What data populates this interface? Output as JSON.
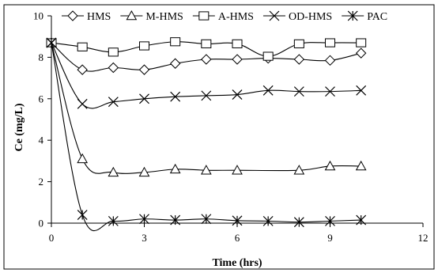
{
  "chart_data": {
    "type": "line",
    "title": "",
    "xlabel": "Time (hrs)",
    "ylabel": "Ce (mg/L)",
    "xlim": [
      0,
      12
    ],
    "ylim": [
      0,
      10
    ],
    "xticks": [
      0,
      3,
      6,
      9,
      12
    ],
    "yticks": [
      0,
      2,
      4,
      6,
      8,
      10
    ],
    "grid": false,
    "legend_position": "top",
    "series": [
      {
        "name": "HMS",
        "marker": "diamond",
        "color": "#000000",
        "x": [
          0,
          1,
          2,
          3,
          4,
          5,
          6,
          7,
          8,
          9,
          10
        ],
        "y": [
          8.7,
          7.4,
          7.5,
          7.4,
          7.7,
          7.9,
          7.9,
          7.95,
          7.9,
          7.85,
          8.2
        ]
      },
      {
        "name": "M-HMS",
        "marker": "triangle",
        "color": "#000000",
        "x": [
          0,
          1,
          2,
          3,
          4,
          5,
          6,
          8,
          9,
          10
        ],
        "y": [
          8.7,
          3.1,
          2.45,
          2.45,
          2.6,
          2.55,
          2.55,
          2.55,
          2.75,
          2.75
        ]
      },
      {
        "name": "A-HMS",
        "marker": "square",
        "color": "#000000",
        "x": [
          0,
          1,
          2,
          3,
          4,
          5,
          6,
          7,
          8,
          9,
          10
        ],
        "y": [
          8.7,
          8.5,
          8.25,
          8.55,
          8.75,
          8.65,
          8.65,
          8.05,
          8.65,
          8.7,
          8.7
        ]
      },
      {
        "name": "OD-HMS",
        "marker": "x",
        "color": "#000000",
        "x": [
          0,
          1,
          2,
          3,
          4,
          5,
          6,
          7,
          8,
          9,
          10
        ],
        "y": [
          8.7,
          5.75,
          5.85,
          6.0,
          6.1,
          6.15,
          6.2,
          6.4,
          6.35,
          6.35,
          6.4
        ]
      },
      {
        "name": "PAC",
        "marker": "asterisk",
        "color": "#000000",
        "x": [
          0,
          1,
          2,
          3,
          4,
          5,
          6,
          7,
          8,
          9,
          10
        ],
        "y": [
          8.7,
          0.4,
          0.1,
          0.2,
          0.15,
          0.2,
          0.12,
          0.1,
          0.05,
          0.1,
          0.15
        ]
      }
    ]
  }
}
